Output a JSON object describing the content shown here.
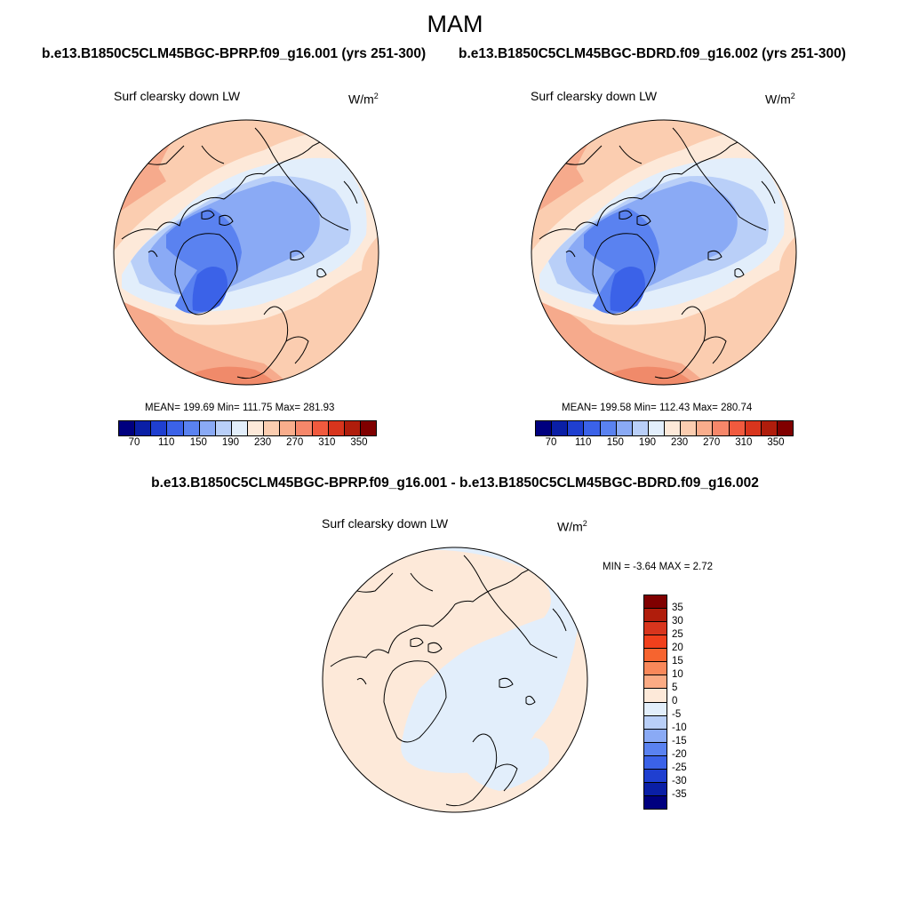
{
  "title": "MAM",
  "case_left": "b.e13.B1850C5CLM45BGC-BPRP.f09_g16.001 (yrs 251-300)",
  "case_right": "b.e13.B1850C5CLM45BGC-BDRD.f09_g16.002 (yrs 251-300)",
  "diff_title": "b.e13.B1850C5CLM45BGC-BPRP.f09_g16.001 - b.e13.B1850C5CLM45BGC-BDRD.f09_g16.002",
  "panel_label": "Surf clearsky down LW",
  "units_base": "W/m",
  "units_exp": "2",
  "panels": [
    {
      "stats": "MEAN= 199.69  Min= 111.75  Max= 281.93",
      "mean": 199.69,
      "min": 111.75,
      "max": 281.93
    },
    {
      "stats": "MEAN= 199.58  Min= 112.43  Max= 280.74",
      "mean": 199.58,
      "min": 112.43,
      "max": 280.74
    }
  ],
  "diff_stats": "MIN =  -3.64 MAX =   2.72",
  "diff_min": -3.64,
  "diff_max": 2.72,
  "abs_colorbar": {
    "levels": [
      "70",
      "110",
      "150",
      "190",
      "230",
      "270",
      "310",
      "350"
    ],
    "colors": [
      "#00007f",
      "#0a1fa6",
      "#1f3fd0",
      "#3b62e8",
      "#5a82f0",
      "#8aaaf5",
      "#b9cff8",
      "#e2eefb",
      "#fde9d9",
      "#fbcdb0",
      "#f9ad8c",
      "#f6876a",
      "#f15a3e",
      "#d8351d",
      "#b01d0c",
      "#800000"
    ]
  },
  "diff_colorbar": {
    "levels": [
      "35",
      "30",
      "25",
      "20",
      "15",
      "10",
      "5",
      "0",
      "-5",
      "-10",
      "-15",
      "-20",
      "-25",
      "-30",
      "-35"
    ],
    "colors": [
      "#800000",
      "#b01d0c",
      "#d8351d",
      "#f1401c",
      "#f6642f",
      "#f9885a",
      "#fbab84",
      "#fde9d9",
      "#e2eefb",
      "#b9cff8",
      "#8aaaf5",
      "#5a82f0",
      "#3b62e8",
      "#1f3fd0",
      "#0a1fa6",
      "#00007f"
    ]
  },
  "map_colors": {
    "warm3": "#f08a6a",
    "warm2": "#f6aa8c",
    "warm1": "#fbcdb0",
    "warm0": "#fde9d9",
    "cool0": "#e2eefb",
    "cool1": "#b9cff8",
    "cool2": "#8aaaf5",
    "cool3": "#5a82f0",
    "cool4": "#3b62e8",
    "diff_warm": "#fde9d9",
    "diff_cool": "#e2eefb"
  }
}
